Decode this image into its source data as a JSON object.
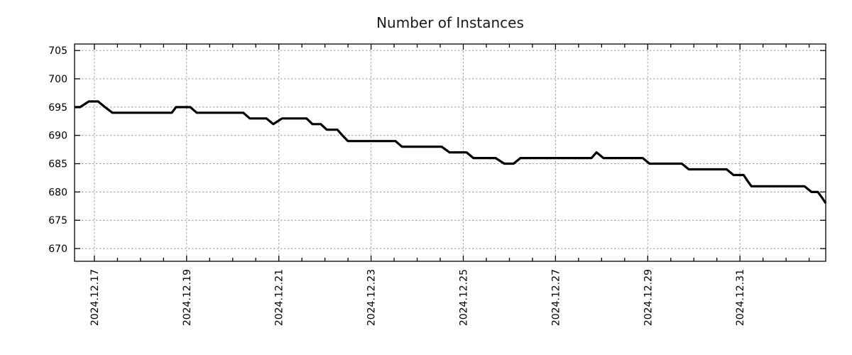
{
  "title": "Number of Instances",
  "chart_data": {
    "type": "line",
    "title": "Number of Instances",
    "legend": null,
    "x_axis": {
      "unit": "days since 2024-12-17 00:00",
      "range": [
        -0.43,
        15.86
      ],
      "major_ticks": [
        {
          "d": 0,
          "label": "2024.12.17"
        },
        {
          "d": 2,
          "label": "2024.12.19"
        },
        {
          "d": 4,
          "label": "2024.12.21"
        },
        {
          "d": 6,
          "label": "2024.12.23"
        },
        {
          "d": 8,
          "label": "2024.12.25"
        },
        {
          "d": 10,
          "label": "2024.12.27"
        },
        {
          "d": 12,
          "label": "2024.12.29"
        },
        {
          "d": 14,
          "label": "2024.12.31"
        }
      ],
      "minor_tick_step_days": 0.5,
      "label_rotation_deg": -90
    },
    "y_axis": {
      "range": [
        667.75,
        706.15
      ],
      "ticks": [
        670,
        675,
        680,
        685,
        690,
        695,
        700,
        705
      ]
    },
    "grid": {
      "visible": true,
      "style": "dotted",
      "color": "#9e9e9e"
    },
    "frame_color": "#000000",
    "series": [
      {
        "name": "instances",
        "color": "#000000",
        "stroke_width": 3.2,
        "points": [
          [
            -0.43,
            695
          ],
          [
            -0.31,
            695
          ],
          [
            -0.12,
            696
          ],
          [
            0.08,
            696
          ],
          [
            0.23,
            695
          ],
          [
            0.39,
            694
          ],
          [
            1.68,
            694
          ],
          [
            1.77,
            695
          ],
          [
            2.08,
            695
          ],
          [
            2.22,
            694
          ],
          [
            3.23,
            694
          ],
          [
            3.37,
            693
          ],
          [
            3.73,
            693
          ],
          [
            3.88,
            692
          ],
          [
            4.07,
            693
          ],
          [
            4.6,
            693
          ],
          [
            4.73,
            692
          ],
          [
            4.91,
            692
          ],
          [
            5.04,
            691
          ],
          [
            5.27,
            691
          ],
          [
            5.38,
            690
          ],
          [
            5.5,
            689
          ],
          [
            6.53,
            689
          ],
          [
            6.67,
            688
          ],
          [
            7.53,
            688
          ],
          [
            7.7,
            687
          ],
          [
            8.07,
            687
          ],
          [
            8.22,
            686
          ],
          [
            8.7,
            686
          ],
          [
            8.89,
            685
          ],
          [
            9.09,
            685
          ],
          [
            9.24,
            686
          ],
          [
            10.78,
            686
          ],
          [
            10.89,
            687
          ],
          [
            11.04,
            686
          ],
          [
            11.89,
            686
          ],
          [
            12.04,
            685
          ],
          [
            12.74,
            685
          ],
          [
            12.89,
            684
          ],
          [
            13.71,
            684
          ],
          [
            13.86,
            683
          ],
          [
            14.08,
            683
          ],
          [
            14.16,
            682
          ],
          [
            14.25,
            681
          ],
          [
            15.4,
            681
          ],
          [
            15.55,
            680
          ],
          [
            15.69,
            680
          ],
          [
            15.78,
            679
          ],
          [
            15.86,
            678
          ]
        ]
      }
    ]
  }
}
